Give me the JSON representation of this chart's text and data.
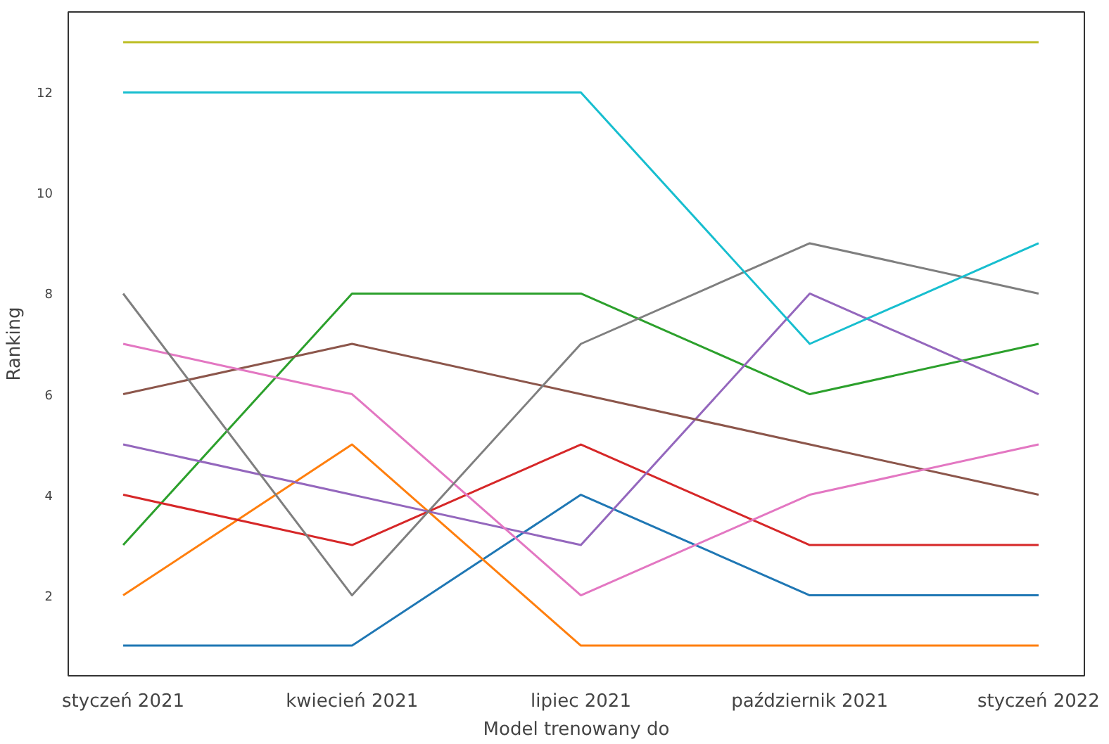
{
  "chart_data": {
    "type": "line",
    "xlabel": "Model trenowany do",
    "ylabel": "Ranking",
    "categories": [
      "styczeń 2021",
      "kwiecień 2021",
      "lipiec 2021",
      "październik 2021",
      "styczeń 2022"
    ],
    "ylim": [
      0.4,
      13.6
    ],
    "yticks": [
      2,
      4,
      6,
      8,
      10,
      12
    ],
    "grid": false,
    "marker": "none",
    "line_style": "solid",
    "series": [
      {
        "color": "#1f77b4",
        "values": [
          1,
          1,
          4,
          2,
          2
        ]
      },
      {
        "color": "#ff7f0e",
        "values": [
          2,
          5,
          1,
          1,
          1
        ]
      },
      {
        "color": "#2ca02c",
        "values": [
          3,
          8,
          8,
          6,
          7
        ]
      },
      {
        "color": "#d62728",
        "values": [
          4,
          3,
          5,
          3,
          3
        ]
      },
      {
        "color": "#9467bd",
        "values": [
          5,
          4,
          3,
          8,
          6
        ]
      },
      {
        "color": "#8c564b",
        "values": [
          6,
          7,
          6,
          5,
          4
        ]
      },
      {
        "color": "#e377c2",
        "values": [
          7,
          6,
          2,
          4,
          5
        ]
      },
      {
        "color": "#7f7f7f",
        "values": [
          8,
          2,
          7,
          9,
          8
        ]
      },
      {
        "color": "#bcbd22",
        "values": [
          13,
          13,
          13,
          13,
          13
        ]
      },
      {
        "color": "#17becf",
        "values": [
          12,
          12,
          12,
          7,
          9
        ]
      }
    ]
  }
}
